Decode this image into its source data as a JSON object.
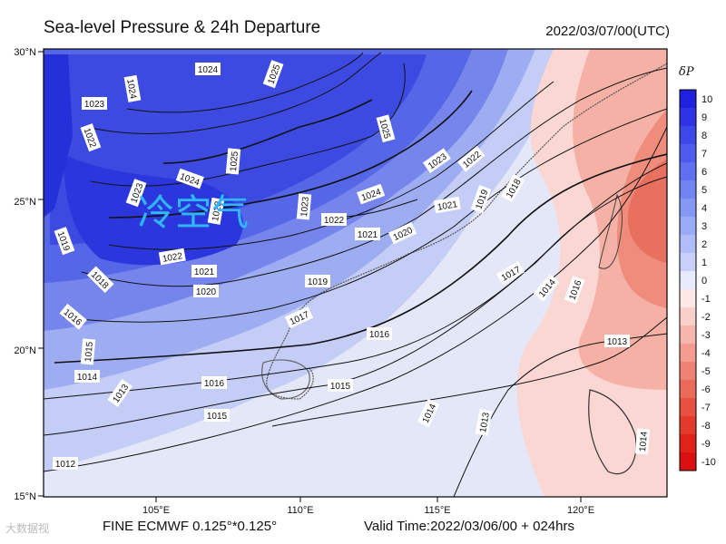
{
  "header": {
    "title": "Sea-level Pressure & 24h Departure",
    "datetime": "2022/03/07/00(UTC)"
  },
  "overlay": {
    "cold_air_label": "冷空气"
  },
  "footer": {
    "watermark": "大数据视",
    "model": "FINE ECMWF 0.125°*0.125°",
    "valid_time": "Valid Time:2022/03/06/00 + 024hrs"
  },
  "axes": {
    "lat_labels": [
      "30°N",
      "25°N",
      "20°N",
      "15°N"
    ],
    "lon_labels": [
      "105°E",
      "110°E",
      "115°E",
      "120°E"
    ]
  },
  "colorbar": {
    "label": "δP",
    "levels": [
      "10",
      "9",
      "8",
      "7",
      "6",
      "5",
      "4",
      "3",
      "2",
      "1",
      "0",
      "-1",
      "-2",
      "-3",
      "-4",
      "-5",
      "-6",
      "-7",
      "-8",
      "-9",
      "-10"
    ],
    "colors": [
      "#2020e0",
      "#2e34e6",
      "#3c48ea",
      "#4d5cee",
      "#5f70f0",
      "#7184f2",
      "#8598f4",
      "#9aabf6",
      "#b0bdf8",
      "#c7d0fa",
      "#e8ebfc",
      "#fce8e6",
      "#fad0cb",
      "#f7b6ad",
      "#f49c90",
      "#f08274",
      "#ec6a5a",
      "#e85040",
      "#e43a2c",
      "#e02218",
      "#dd1010"
    ]
  },
  "isobars": [
    "1024",
    "1025",
    "1023",
    "1024",
    "1022",
    "1025",
    "1023",
    "1024",
    "1025",
    "1023",
    "1022",
    "1023",
    "1024",
    "1023",
    "1022",
    "1021",
    "1019",
    "1020",
    "1021",
    "1019",
    "1018",
    "1022",
    "1021",
    "1020",
    "1019",
    "1018",
    "1017",
    "1016",
    "1015",
    "1016",
    "1015",
    "1014",
    "1013",
    "1014",
    "1013",
    "1012",
    "1017",
    "1016",
    "1015",
    "1014",
    "1013",
    "1014",
    "1016"
  ]
}
